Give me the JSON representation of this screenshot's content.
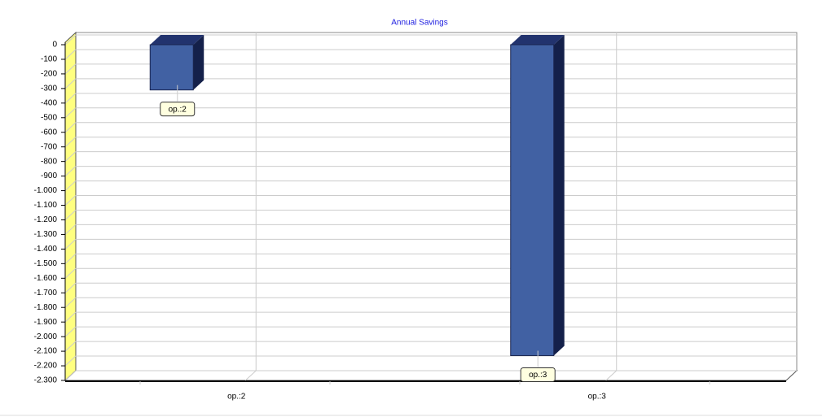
{
  "chart_data": {
    "type": "bar3d",
    "title": "Annual Savings",
    "categories": [
      "op.:2",
      "op.:3"
    ],
    "values": [
      -310,
      -2130
    ],
    "color": "#4161a3",
    "ylim": [
      -2300,
      0
    ],
    "yticks": [
      0,
      -100,
      -200,
      -300,
      -400,
      -500,
      -600,
      -700,
      -800,
      -900,
      {
        "value": -1000,
        "label": "-1.000"
      },
      {
        "value": -1100,
        "label": "-1.100"
      },
      {
        "value": -1200,
        "label": "-1.200"
      },
      {
        "value": -1300,
        "label": "-1.300"
      },
      {
        "value": -1400,
        "label": "-1.400"
      },
      {
        "value": -1500,
        "label": "-1.500"
      },
      {
        "value": -1600,
        "label": "-1.600"
      },
      {
        "value": -1700,
        "label": "-1.700"
      },
      {
        "value": -1800,
        "label": "-1.800"
      },
      {
        "value": -1900,
        "label": "-1.900"
      },
      {
        "value": -2000,
        "label": "-2.000"
      },
      {
        "value": -2100,
        "label": "-2.100"
      },
      {
        "value": -2200,
        "label": "-2.200"
      },
      {
        "value": -2300,
        "label": "-2.300"
      }
    ],
    "grid": true
  }
}
